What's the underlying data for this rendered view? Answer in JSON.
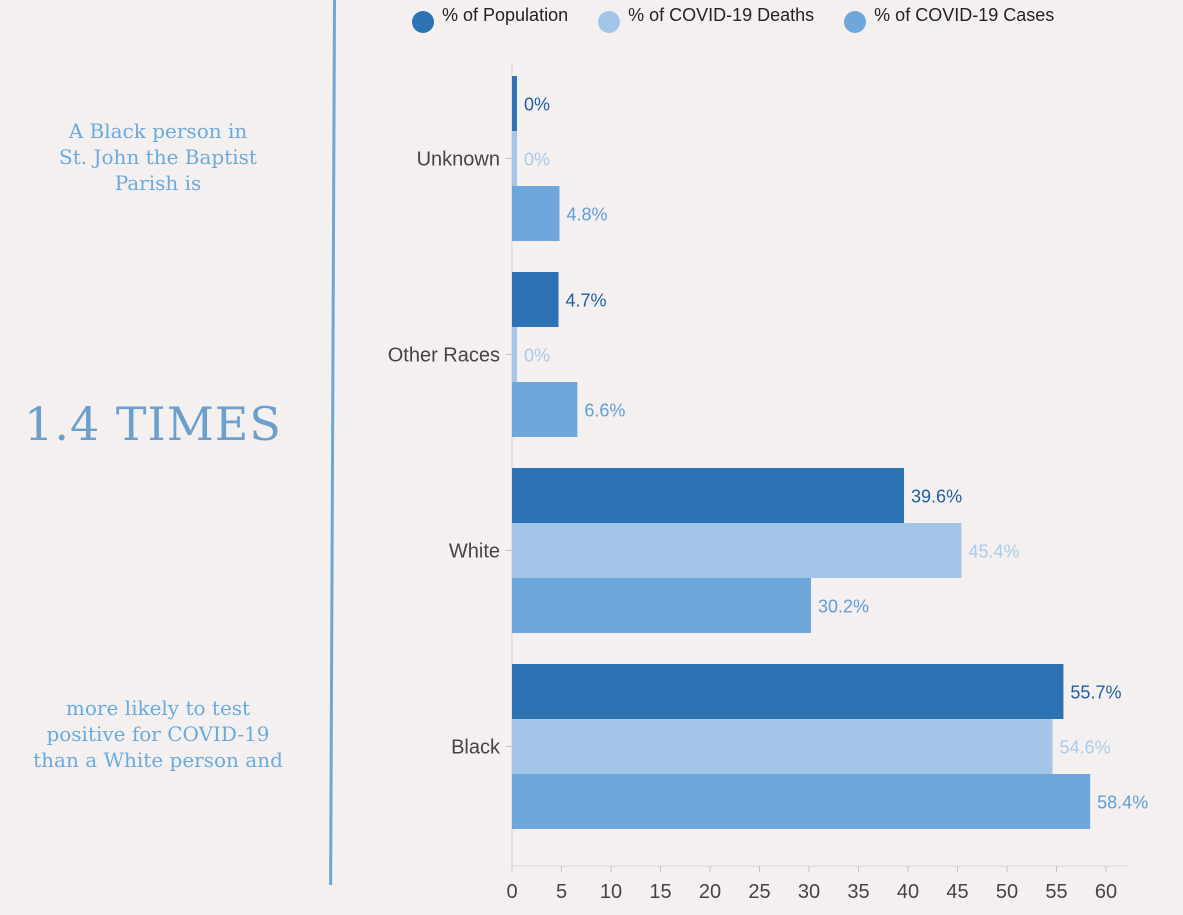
{
  "panel": {
    "intro_line1": "A Black person in",
    "intro_line2": "St. John the Baptist",
    "intro_line3": "Parish is",
    "headline": "1.4 TIMES",
    "outro_line1": "more likely to test",
    "outro_line2": "positive for COVID-19",
    "outro_line3": "than a White person and"
  },
  "colors": {
    "population": "#2d72b2",
    "deaths": "#a2c5e8",
    "cases": "#6ea7dc",
    "accent_text": "#6aabdf"
  },
  "chart_data": {
    "type": "bar",
    "orientation": "horizontal",
    "title": "",
    "xlabel": "",
    "ylabel": "",
    "xlim": [
      0,
      60
    ],
    "x_ticks": [
      "0",
      "5",
      "10",
      "15",
      "20",
      "25",
      "30",
      "35",
      "40",
      "45",
      "50",
      "55",
      "60"
    ],
    "categories": [
      "Unknown",
      "Other Races",
      "White",
      "Black"
    ],
    "series": [
      {
        "name": "% of Population",
        "color": "#2d72b2",
        "values": [
          0.5,
          4.7,
          39.6,
          55.7
        ],
        "labels": [
          "0%",
          "4.7%",
          "39.6%",
          "55.7%"
        ]
      },
      {
        "name": "% of COVID-19 Deaths",
        "color": "#a2c5e8",
        "values": [
          0.5,
          0.5,
          45.4,
          54.6
        ],
        "labels": [
          "0%",
          "0%",
          "45.4%",
          "54.6%"
        ]
      },
      {
        "name": "% of COVID-19 Cases",
        "color": "#6ea7dc",
        "values": [
          4.8,
          6.6,
          30.2,
          58.4
        ],
        "labels": [
          "4.8%",
          "6.6%",
          "30.2%",
          "58.4%"
        ]
      }
    ],
    "grid": false,
    "legend_position": "top"
  }
}
